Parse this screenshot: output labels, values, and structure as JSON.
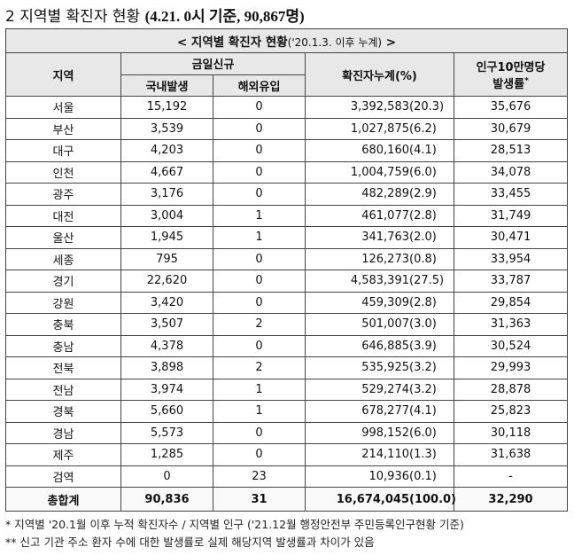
{
  "heading": {
    "prefix": "2 지역별 확진자 현황",
    "date_info": "(4.21. 0시 기준, 90,867명)"
  },
  "table": {
    "caption_main": "< 지역별 확진자 현황",
    "caption_sub": "('20.1.3. 이후 누계)",
    "caption_end": " >",
    "headers": {
      "region": "지역",
      "daily_new": "금일신규",
      "domestic": "국내발생",
      "overseas": "해외유입",
      "cumulative": "확진자누계(%)",
      "per100k_line1": "인구10만명당",
      "per100k_line2": "발생률",
      "per100k_mark": "*"
    },
    "rows": [
      {
        "region": "서울",
        "domestic": "15,192",
        "overseas": "0",
        "cumulative": "3,392,583",
        "pct": "(20.3)",
        "rate": "35,676"
      },
      {
        "region": "부산",
        "domestic": "3,539",
        "overseas": "0",
        "cumulative": "1,027,875",
        "pct": "(6.2)",
        "rate": "30,679"
      },
      {
        "region": "대구",
        "domestic": "4,203",
        "overseas": "0",
        "cumulative": "680,160",
        "pct": "(4.1)",
        "rate": "28,513"
      },
      {
        "region": "인천",
        "domestic": "4,667",
        "overseas": "0",
        "cumulative": "1,004,759",
        "pct": "(6.0)",
        "rate": "34,078"
      },
      {
        "region": "광주",
        "domestic": "3,176",
        "overseas": "0",
        "cumulative": "482,289",
        "pct": "(2.9)",
        "rate": "33,455"
      },
      {
        "region": "대전",
        "domestic": "3,004",
        "overseas": "1",
        "cumulative": "461,077",
        "pct": "(2.8)",
        "rate": "31,749"
      },
      {
        "region": "울산",
        "domestic": "1,945",
        "overseas": "1",
        "cumulative": "341,763",
        "pct": "(2.0)",
        "rate": "30,471"
      },
      {
        "region": "세종",
        "domestic": "795",
        "overseas": "0",
        "cumulative": "126,273",
        "pct": "(0.8)",
        "rate": "33,954"
      },
      {
        "region": "경기",
        "domestic": "22,620",
        "overseas": "0",
        "cumulative": "4,583,391",
        "pct": "(27.5)",
        "rate": "33,787"
      },
      {
        "region": "강원",
        "domestic": "3,420",
        "overseas": "0",
        "cumulative": "459,309",
        "pct": "(2.8)",
        "rate": "29,854"
      },
      {
        "region": "충북",
        "domestic": "3,507",
        "overseas": "2",
        "cumulative": "501,007",
        "pct": "(3.0)",
        "rate": "31,363"
      },
      {
        "region": "충남",
        "domestic": "4,378",
        "overseas": "0",
        "cumulative": "646,885",
        "pct": "(3.9)",
        "rate": "30,524"
      },
      {
        "region": "전북",
        "domestic": "3,898",
        "overseas": "2",
        "cumulative": "535,925",
        "pct": "(3.2)",
        "rate": "29,993"
      },
      {
        "region": "전남",
        "domestic": "3,974",
        "overseas": "1",
        "cumulative": "529,274",
        "pct": "(3.2)",
        "rate": "28,878"
      },
      {
        "region": "경북",
        "domestic": "5,660",
        "overseas": "1",
        "cumulative": "678,277",
        "pct": "(4.1)",
        "rate": "25,823"
      },
      {
        "region": "경남",
        "domestic": "5,573",
        "overseas": "0",
        "cumulative": "998,152",
        "pct": "(6.0)",
        "rate": "30,118"
      },
      {
        "region": "제주",
        "domestic": "1,285",
        "overseas": "0",
        "cumulative": "214,110",
        "pct": "(1.3)",
        "rate": "31,638"
      },
      {
        "region": "검역",
        "domestic": "0",
        "overseas": "23",
        "cumulative": "10,936",
        "pct": "(0.1)",
        "rate": "-"
      }
    ],
    "total": {
      "region": "총합계",
      "domestic": "90,836",
      "overseas": "31",
      "cumulative": "16,674,045",
      "pct": "(100.0)",
      "rate": "32,290"
    }
  },
  "notes": [
    "* 지역별 '20.1월 이후 누적 확진자수 / 지역별 인구 ('21.12월 행정안전부 주민등록인구현황 기준)",
    "** 신고 기관 주소 환자 수에 대한 발생률로 실제 해당지역 발생률과 차이가 있음"
  ]
}
